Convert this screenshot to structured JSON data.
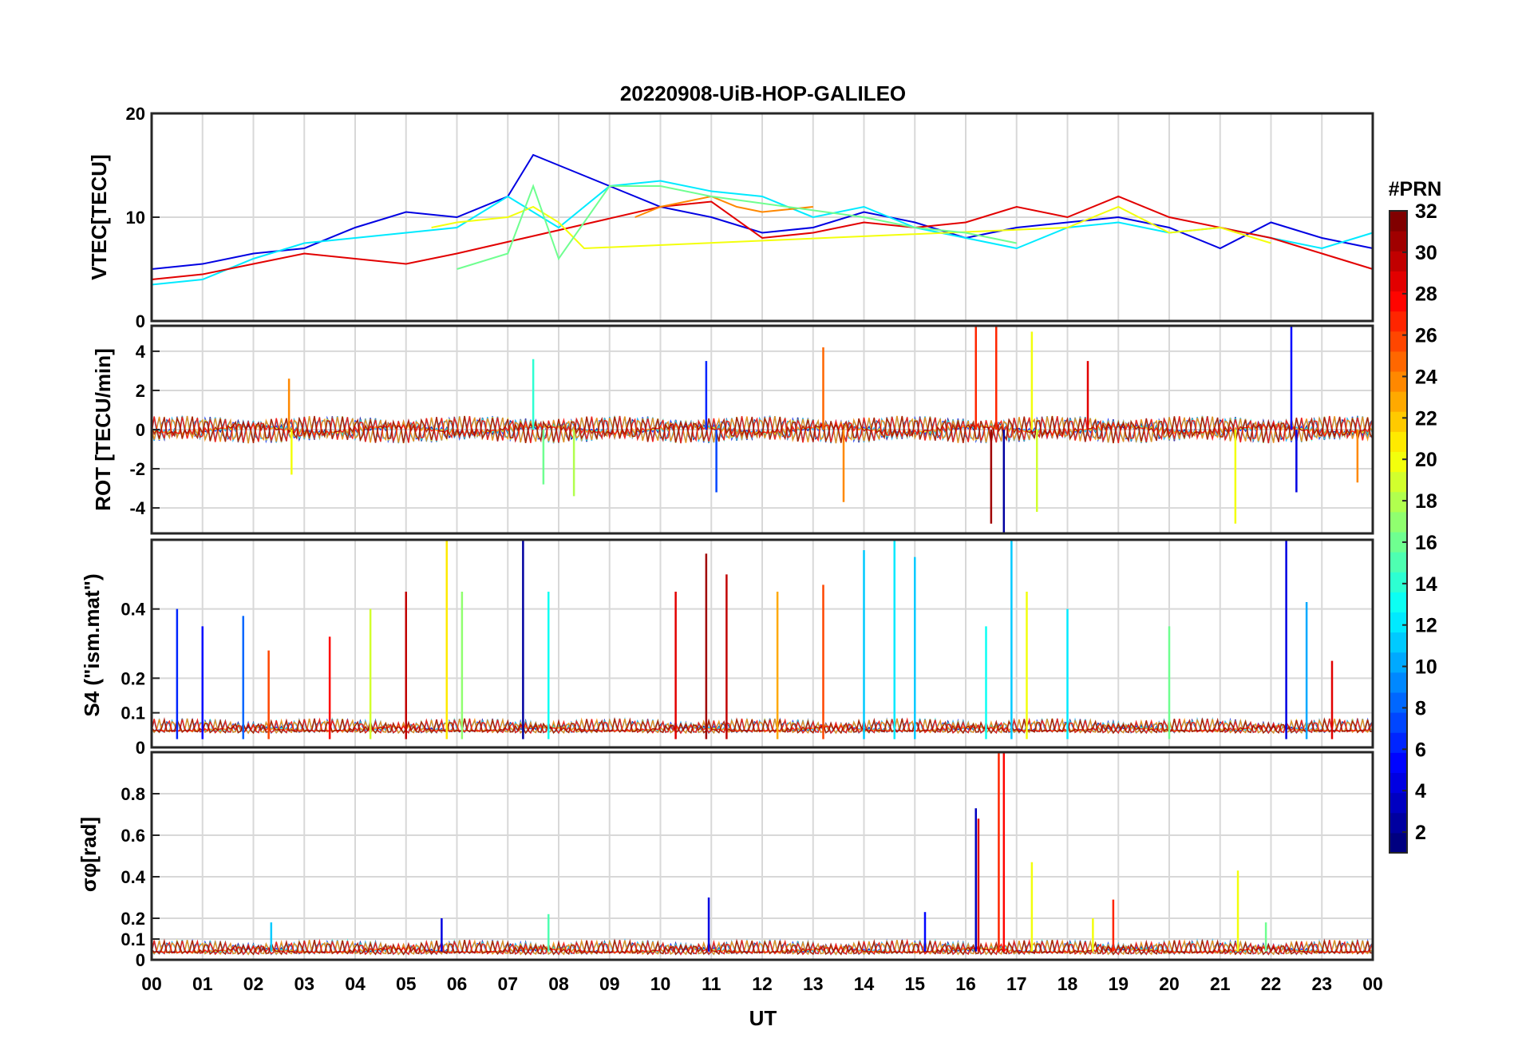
{
  "chart_data": {
    "type": "line",
    "title": "20220908-UiB-HOP-GALILEO",
    "xlabel": "UT",
    "x_tick_labels": [
      "00",
      "01",
      "02",
      "03",
      "04",
      "05",
      "06",
      "07",
      "08",
      "09",
      "10",
      "11",
      "12",
      "13",
      "14",
      "15",
      "16",
      "17",
      "18",
      "19",
      "20",
      "21",
      "22",
      "23",
      "00"
    ],
    "xlim_hours": [
      0,
      24
    ],
    "grid": true,
    "colormap": "jet",
    "colors": {
      "jet_stops": [
        "#00007f",
        "#0000ff",
        "#007fff",
        "#00ffff",
        "#7fff7f",
        "#ffff00",
        "#ff7f00",
        "#ff0000",
        "#7f0000"
      ],
      "grid": "#d8d8d8",
      "axes": "#262626"
    },
    "colorbar": {
      "label": "#PRN",
      "range": [
        1,
        32
      ],
      "levels": 32,
      "tick_labels": [
        "2",
        "4",
        "6",
        "8",
        "10",
        "12",
        "14",
        "16",
        "18",
        "20",
        "22",
        "24",
        "26",
        "28",
        "30",
        "32"
      ]
    },
    "panels": [
      {
        "ylabel": "VTEC[TECU]",
        "ylim": [
          0,
          20
        ],
        "y_ticks": [
          0,
          10,
          20
        ],
        "y_tick_labels": [
          "0",
          "10",
          "20"
        ],
        "series": [
          {
            "prn": 4,
            "x": [
              0,
              1,
              2,
              3,
              4,
              5,
              6,
              7,
              7.5,
              8,
              9,
              10,
              11,
              12,
              13,
              14,
              15,
              16,
              17,
              18,
              19,
              20,
              21,
              22,
              23,
              24
            ],
            "y": [
              5,
              5.5,
              6.5,
              7,
              9,
              10.5,
              10,
              12,
              16,
              15,
              13,
              11,
              10,
              8.5,
              9,
              10.5,
              9.5,
              8,
              9,
              9.5,
              10,
              9,
              7,
              9.5,
              8,
              7
            ]
          },
          {
            "prn": 12,
            "x": [
              0,
              1,
              2,
              3,
              4,
              5,
              6,
              7,
              8,
              9,
              10,
              11,
              12,
              13,
              14,
              15,
              16,
              17,
              18,
              19,
              20,
              21,
              22,
              23,
              24
            ],
            "y": [
              3.5,
              4,
              6,
              7.5,
              8,
              8.5,
              9,
              12,
              9,
              13,
              13.5,
              12.5,
              12,
              10,
              11,
              9,
              8,
              7,
              9,
              9.5,
              8.5,
              9,
              8,
              7,
              8.5
            ]
          },
          {
            "prn": 29,
            "x": [
              0,
              1,
              2,
              3,
              4,
              5,
              6,
              10,
              11,
              12,
              13,
              14,
              15,
              16,
              17,
              18,
              19,
              20,
              21,
              22,
              23,
              24
            ],
            "y": [
              4,
              4.5,
              5.5,
              6.5,
              6,
              5.5,
              6.5,
              11,
              11.5,
              8,
              8.5,
              9.5,
              9,
              9.5,
              11,
              10,
              12,
              10,
              9,
              8,
              6.5,
              5
            ]
          },
          {
            "prn": 20,
            "x": [
              5.5,
              6,
              7,
              7.5,
              8,
              8.5,
              18,
              19,
              20,
              21,
              22
            ],
            "y": [
              9,
              9.5,
              10,
              11,
              9.5,
              7,
              9,
              11,
              8.5,
              9,
              7.5
            ]
          },
          {
            "prn": 24,
            "x": [
              9.5,
              10,
              11,
              11.5,
              12,
              13
            ],
            "y": [
              10,
              11,
              12,
              11,
              10.5,
              11
            ]
          },
          {
            "prn": 16,
            "x": [
              6,
              7,
              7.5,
              8,
              9,
              10,
              11,
              14,
              15,
              16,
              17
            ],
            "y": [
              5,
              6.5,
              13,
              6,
              13,
              13,
              12,
              10,
              9,
              8.5,
              7.5
            ]
          }
        ]
      },
      {
        "ylabel": "ROT [TECU/min]",
        "ylim": [
          -5.3,
          5.3
        ],
        "y_ticks": [
          -4,
          -2,
          0,
          2,
          4
        ],
        "y_tick_labels": [
          "-4",
          "-2",
          "0",
          "2",
          "4"
        ],
        "spikes": [
          {
            "prn": 24,
            "x": 2.7,
            "y": 2.6
          },
          {
            "prn": 20,
            "x": 2.75,
            "y": -2.3
          },
          {
            "prn": 14,
            "x": 7.5,
            "y": 3.6
          },
          {
            "prn": 16,
            "x": 7.7,
            "y": -2.8
          },
          {
            "prn": 18,
            "x": 8.3,
            "y": -3.4
          },
          {
            "prn": 6,
            "x": 10.9,
            "y": 3.5
          },
          {
            "prn": 7,
            "x": 11.1,
            "y": -3.2
          },
          {
            "prn": 25,
            "x": 13.2,
            "y": 4.2
          },
          {
            "prn": 24,
            "x": 13.6,
            "y": -3.7
          },
          {
            "prn": 27,
            "x": 16.2,
            "y": 5.3
          },
          {
            "prn": 31,
            "x": 16.5,
            "y": -4.8
          },
          {
            "prn": 27,
            "x": 16.6,
            "y": 5.3
          },
          {
            "prn": 2,
            "x": 16.75,
            "y": -5.3
          },
          {
            "prn": 20,
            "x": 17.3,
            "y": 5.0
          },
          {
            "prn": 19,
            "x": 17.4,
            "y": -4.2
          },
          {
            "prn": 29,
            "x": 18.4,
            "y": 3.5
          },
          {
            "prn": 20,
            "x": 21.3,
            "y": -4.8
          },
          {
            "prn": 5,
            "x": 22.4,
            "y": 5.3
          },
          {
            "prn": 4,
            "x": 22.5,
            "y": -3.2
          },
          {
            "prn": 24,
            "x": 23.7,
            "y": -2.7
          }
        ]
      },
      {
        "ylabel": "S4 (\"ism.mat\")",
        "ylim": [
          0,
          0.6
        ],
        "y_ticks": [
          0,
          0.1,
          0.2,
          0.4
        ],
        "y_tick_labels": [
          "0",
          "0.1",
          "0.2",
          "0.4"
        ],
        "spikes": [
          {
            "prn": 6,
            "x": 0.5,
            "y": 0.4
          },
          {
            "prn": 5,
            "x": 1.0,
            "y": 0.35
          },
          {
            "prn": 8,
            "x": 1.8,
            "y": 0.38
          },
          {
            "prn": 26,
            "x": 2.3,
            "y": 0.28
          },
          {
            "prn": 28,
            "x": 3.5,
            "y": 0.32
          },
          {
            "prn": 19,
            "x": 4.3,
            "y": 0.4
          },
          {
            "prn": 30,
            "x": 5.0,
            "y": 0.45
          },
          {
            "prn": 21,
            "x": 5.8,
            "y": 0.6
          },
          {
            "prn": 17,
            "x": 6.1,
            "y": 0.45
          },
          {
            "prn": 2,
            "x": 7.3,
            "y": 0.6
          },
          {
            "prn": 13,
            "x": 7.8,
            "y": 0.45
          },
          {
            "prn": 29,
            "x": 10.3,
            "y": 0.45
          },
          {
            "prn": 31,
            "x": 10.9,
            "y": 0.56
          },
          {
            "prn": 30,
            "x": 11.3,
            "y": 0.5
          },
          {
            "prn": 23,
            "x": 12.3,
            "y": 0.45
          },
          {
            "prn": 26,
            "x": 13.2,
            "y": 0.47
          },
          {
            "prn": 11,
            "x": 14.0,
            "y": 0.57
          },
          {
            "prn": 12,
            "x": 14.6,
            "y": 0.6
          },
          {
            "prn": 11,
            "x": 15.0,
            "y": 0.55
          },
          {
            "prn": 13,
            "x": 16.4,
            "y": 0.35
          },
          {
            "prn": 11,
            "x": 16.9,
            "y": 0.6
          },
          {
            "prn": 20,
            "x": 17.2,
            "y": 0.45
          },
          {
            "prn": 12,
            "x": 18.0,
            "y": 0.4
          },
          {
            "prn": 16,
            "x": 20.0,
            "y": 0.35
          },
          {
            "prn": 4,
            "x": 22.3,
            "y": 0.6
          },
          {
            "prn": 10,
            "x": 22.7,
            "y": 0.42
          },
          {
            "prn": 29,
            "x": 23.2,
            "y": 0.25
          }
        ]
      },
      {
        "ylabel": "σφ[rad]",
        "ylim": [
          0,
          1.0
        ],
        "y_ticks": [
          0,
          0.1,
          0.2,
          0.4,
          0.6,
          0.8
        ],
        "y_tick_labels": [
          "0",
          "0.1",
          "0.2",
          "0.4",
          "0.6",
          "0.8"
        ],
        "spikes": [
          {
            "prn": 11,
            "x": 2.35,
            "y": 0.18
          },
          {
            "prn": 4,
            "x": 5.7,
            "y": 0.2
          },
          {
            "prn": 15,
            "x": 7.8,
            "y": 0.22
          },
          {
            "prn": 4,
            "x": 10.95,
            "y": 0.3
          },
          {
            "prn": 5,
            "x": 15.2,
            "y": 0.23
          },
          {
            "prn": 3,
            "x": 16.2,
            "y": 0.73
          },
          {
            "prn": 29,
            "x": 16.25,
            "y": 0.68
          },
          {
            "prn": 27,
            "x": 16.65,
            "y": 1.0
          },
          {
            "prn": 28,
            "x": 16.75,
            "y": 1.0
          },
          {
            "prn": 20,
            "x": 17.3,
            "y": 0.47
          },
          {
            "prn": 20,
            "x": 18.5,
            "y": 0.2
          },
          {
            "prn": 27,
            "x": 18.9,
            "y": 0.29
          },
          {
            "prn": 20,
            "x": 21.35,
            "y": 0.43
          },
          {
            "prn": 16,
            "x": 21.9,
            "y": 0.18
          }
        ]
      }
    ]
  }
}
